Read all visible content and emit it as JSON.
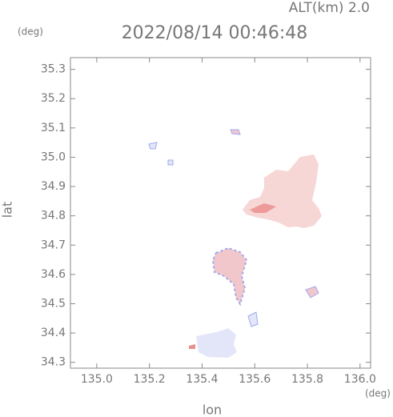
{
  "chart_data": {
    "type": "map",
    "title": "2022/08/14 00:46:48",
    "subtitle": "ALT(km) 2.0",
    "x_label": "lon",
    "y_label": "lat",
    "x_unit": "(deg)",
    "y_unit": "(deg)",
    "xlim": [
      134.9,
      136.04
    ],
    "ylim": [
      34.28,
      35.34
    ],
    "xticks": [
      {
        "value": 135,
        "label": "135.0"
      },
      135.2,
      135.4,
      135.6,
      135.8,
      {
        "value": 136,
        "label": "136.0"
      }
    ],
    "yticks": [
      34.3,
      34.4,
      34.5,
      34.6,
      34.7,
      34.8,
      34.9,
      {
        "value": 35,
        "label": "35.0"
      },
      35.1,
      35.2,
      35.3
    ]
  }
}
